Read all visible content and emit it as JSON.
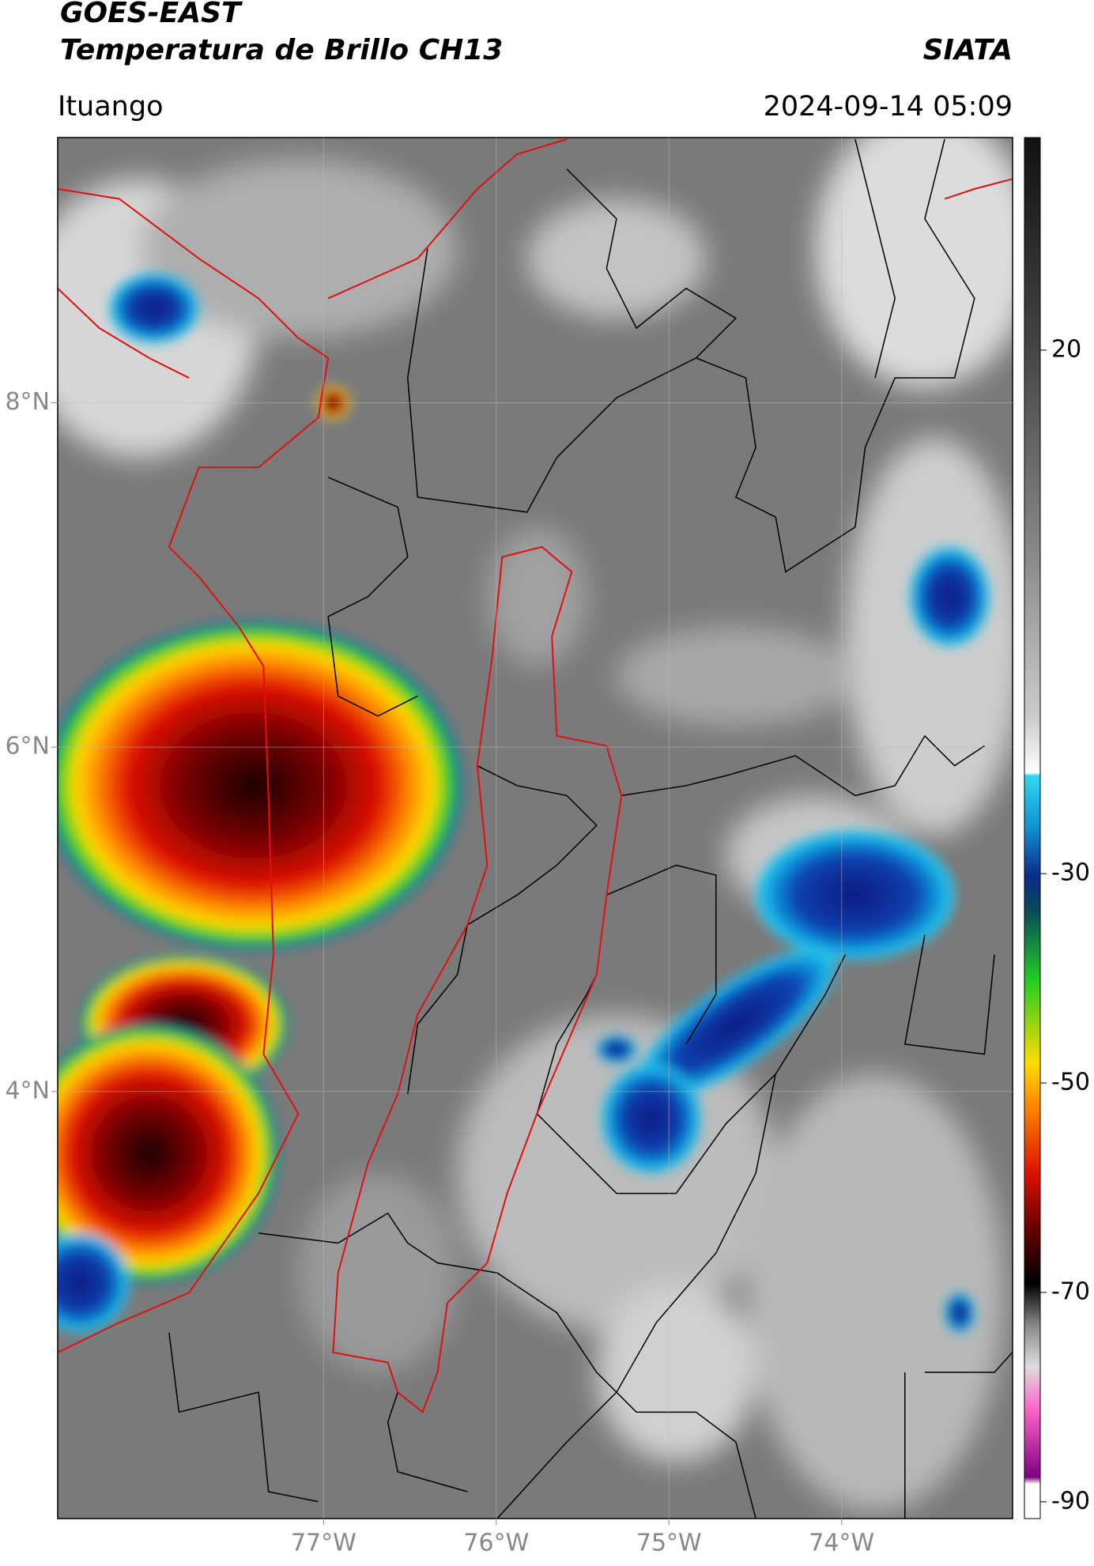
{
  "header": {
    "title": "GOES-EAST",
    "subtitle": "Temperatura de Brillo CH13",
    "source": "SIATA",
    "location": "Ituango",
    "datetime": "2024-09-14 05:09"
  },
  "map": {
    "type": "map",
    "xlim": [
      -78.54,
      -73.01
    ],
    "ylim": [
      1.52,
      9.54
    ],
    "grid": true,
    "xticks": [
      {
        "value": -77,
        "label": "77°W"
      },
      {
        "value": -76,
        "label": "76°W"
      },
      {
        "value": -75,
        "label": "75°W"
      },
      {
        "value": -74,
        "label": "74°W"
      }
    ],
    "yticks": [
      {
        "value": 8,
        "label": "8°N"
      },
      {
        "value": 6,
        "label": "6°N"
      },
      {
        "value": 4,
        "label": "4°N"
      }
    ]
  },
  "colorbar": {
    "lim": [
      -91.6,
      40.3
    ],
    "ticks": [
      20,
      -30,
      -50,
      -70,
      -90
    ]
  }
}
